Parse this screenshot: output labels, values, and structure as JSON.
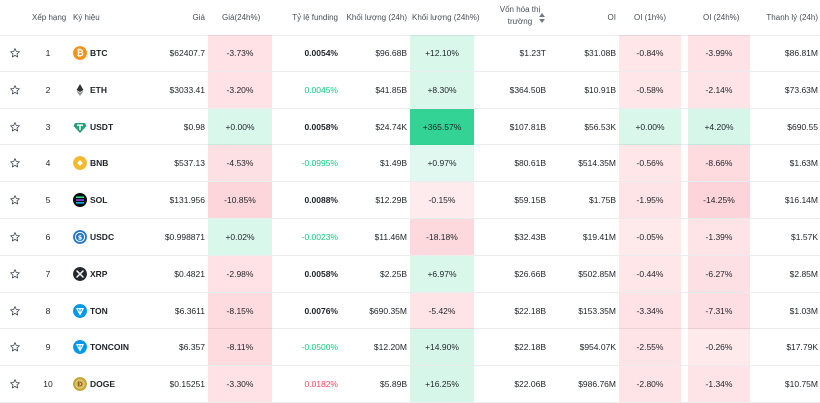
{
  "headers": {
    "rank": "Xếp hạng",
    "symbol": "Ký hiệu",
    "price": "Giá",
    "price_change": "Giá(24h%)",
    "funding": "Tỷ lệ funding",
    "volume": "Khối lượng (24h)",
    "volume_change": "Khối lượng (24h%)",
    "market_cap_line1": "Vốn hóa thị",
    "market_cap_line2": "trường",
    "oi": "OI",
    "oi_1h": "OI (1h%)",
    "oi_24h": "OI (24h%)",
    "liquidation": "Thanh lý (24h)"
  },
  "colors": {
    "positive": "#0ecb81",
    "negative": "#f6465d",
    "neutral": "#1e2329"
  },
  "rows": [
    {
      "rank": "1",
      "symbol": "BTC",
      "icon": "btc-icon",
      "price": "$62407.7",
      "price_change": "-3.73%",
      "price_change_bg": 0.35,
      "funding": "0.0054%",
      "funding_tone": "neutral",
      "volume": "$96.68B",
      "volume_change": "+12.10%",
      "volume_change_bg": 0.3,
      "market_cap": "$1.23T",
      "oi": "$31.08B",
      "oi_1h": "-0.84%",
      "oi_1h_bg": 0.25,
      "oi_24h": "-3.99%",
      "oi_24h_bg": 0.35,
      "liquidation": "$86.81M"
    },
    {
      "rank": "2",
      "symbol": "ETH",
      "icon": "eth-icon",
      "price": "$3033.41",
      "price_change": "-3.20%",
      "price_change_bg": 0.35,
      "funding": "0.0045%",
      "funding_tone": "positive",
      "volume": "$41.85B",
      "volume_change": "+8.30%",
      "volume_change_bg": 0.3,
      "market_cap": "$364.50B",
      "oi": "$10.91B",
      "oi_1h": "-0.58%",
      "oi_1h_bg": 0.25,
      "oi_24h": "-2.14%",
      "oi_24h_bg": 0.3,
      "liquidation": "$73.63M"
    },
    {
      "rank": "3",
      "symbol": "USDT",
      "icon": "usdt-icon",
      "price": "$0.98",
      "price_change": "+0.00%",
      "price_change_bg": 0.3,
      "funding": "0.0058%",
      "funding_tone": "neutral",
      "volume": "$24.74K",
      "volume_change": "+365.57%",
      "volume_change_bg": 1.0,
      "market_cap": "$107.81B",
      "oi": "$56.53K",
      "oi_1h": "+0.00%",
      "oi_1h_bg": 0.3,
      "oi_24h": "+4.20%",
      "oi_24h_bg": 0.35,
      "liquidation": "$690.55"
    },
    {
      "rank": "4",
      "symbol": "BNB",
      "icon": "bnb-icon",
      "price": "$537.13",
      "price_change": "-4.53%",
      "price_change_bg": 0.4,
      "funding": "-0.0995%",
      "funding_tone": "positive",
      "volume": "$1.49B",
      "volume_change": "+0.97%",
      "volume_change_bg": 0.2,
      "market_cap": "$80.61B",
      "oi": "$514.35M",
      "oi_1h": "-0.56%",
      "oi_1h_bg": 0.25,
      "oi_24h": "-8.66%",
      "oi_24h_bg": 0.5,
      "liquidation": "$1.63M"
    },
    {
      "rank": "5",
      "symbol": "SOL",
      "icon": "sol-icon",
      "price": "$131.956",
      "price_change": "-10.85%",
      "price_change_bg": 0.6,
      "funding": "0.0088%",
      "funding_tone": "neutral",
      "volume": "$12.29B",
      "volume_change": "-0.15%",
      "volume_change_bg": 0.15,
      "market_cap": "$59.15B",
      "oi": "$1.75B",
      "oi_1h": "-1.95%",
      "oi_1h_bg": 0.3,
      "oi_24h": "-14.25%",
      "oi_24h_bg": 0.65,
      "liquidation": "$16.14M"
    },
    {
      "rank": "6",
      "symbol": "USDC",
      "icon": "usdc-icon",
      "price": "$0.998871",
      "price_change": "+0.02%",
      "price_change_bg": 0.3,
      "funding": "-0.0023%",
      "funding_tone": "positive",
      "volume": "$11.46M",
      "volume_change": "-18.18%",
      "volume_change_bg": 0.55,
      "market_cap": "$32.43B",
      "oi": "$19.41M",
      "oi_1h": "-0.05%",
      "oi_1h_bg": 0.2,
      "oi_24h": "-1.39%",
      "oi_24h_bg": 0.3,
      "liquidation": "$1.57K"
    },
    {
      "rank": "7",
      "symbol": "XRP",
      "icon": "xrp-icon",
      "price": "$0.4821",
      "price_change": "-2.98%",
      "price_change_bg": 0.35,
      "funding": "0.0058%",
      "funding_tone": "neutral",
      "volume": "$2.25B",
      "volume_change": "+6.97%",
      "volume_change_bg": 0.3,
      "market_cap": "$26.66B",
      "oi": "$502.85M",
      "oi_1h": "-0.44%",
      "oi_1h_bg": 0.25,
      "oi_24h": "-6.27%",
      "oi_24h_bg": 0.4,
      "liquidation": "$2.85M"
    },
    {
      "rank": "8",
      "symbol": "TON",
      "icon": "ton-icon",
      "price": "$6.3611",
      "price_change": "-8.15%",
      "price_change_bg": 0.5,
      "funding": "0.0076%",
      "funding_tone": "neutral",
      "volume": "$690.35M",
      "volume_change": "-5.42%",
      "volume_change_bg": 0.3,
      "market_cap": "$22.18B",
      "oi": "$153.35M",
      "oi_1h": "-3.34%",
      "oi_1h_bg": 0.35,
      "oi_24h": "-7.31%",
      "oi_24h_bg": 0.45,
      "liquidation": "$1.03M"
    },
    {
      "rank": "9",
      "symbol": "TONCOIN",
      "icon": "toncoin-icon",
      "price": "$6.357",
      "price_change": "-8.11%",
      "price_change_bg": 0.5,
      "funding": "-0.0500%",
      "funding_tone": "positive",
      "volume": "$12.20M",
      "volume_change": "+14.90%",
      "volume_change_bg": 0.35,
      "market_cap": "$22.18B",
      "oi": "$954.07K",
      "oi_1h": "-2.55%",
      "oi_1h_bg": 0.3,
      "oi_24h": "-0.26%",
      "oi_24h_bg": 0.2,
      "liquidation": "$17.79K"
    },
    {
      "rank": "10",
      "symbol": "DOGE",
      "icon": "doge-icon",
      "price": "$0.15251",
      "price_change": "-3.30%",
      "price_change_bg": 0.35,
      "funding": "0.0182%",
      "funding_tone": "negative",
      "volume": "$5.89B",
      "volume_change": "+16.25%",
      "volume_change_bg": 0.35,
      "market_cap": "$22.06B",
      "oi": "$986.76M",
      "oi_1h": "-2.80%",
      "oi_1h_bg": 0.3,
      "oi_24h": "-1.34%",
      "oi_24h_bg": 0.3,
      "liquidation": "$10.75M"
    }
  ]
}
